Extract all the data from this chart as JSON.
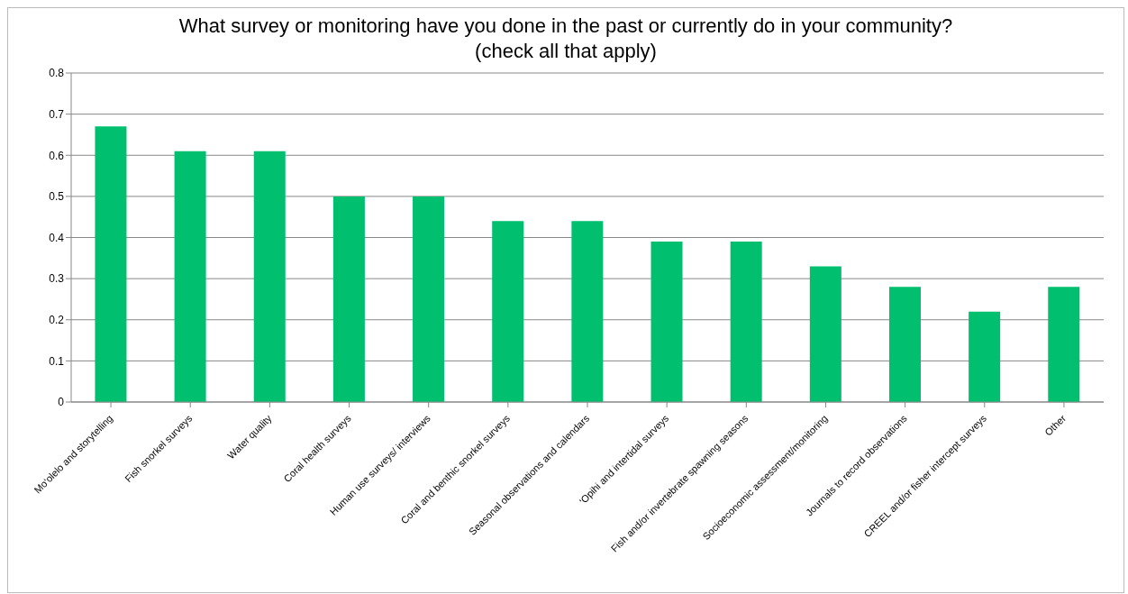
{
  "chart_data": {
    "type": "bar",
    "title": "What survey or monitoring have you done in the past or currently do in your community? (check all that apply)",
    "categories": [
      "Mo‘olelo and storytelling",
      "Fish snorkel surveys",
      "Water quality",
      "Coral health surveys",
      "Human use surveys/ interviews",
      "Coral and benthic snorkel surveys",
      "Seasonal observations and calendars",
      "‘Opihi and intertidal surveys",
      "Fish and/or invertebrate spawning seasons",
      "Socioeconomic assessment/monitoring",
      "Journals to record observations",
      "CREEL and/or fisher intercept surveys",
      "Other"
    ],
    "values": [
      0.67,
      0.61,
      0.61,
      0.5,
      0.5,
      0.44,
      0.44,
      0.39,
      0.39,
      0.33,
      0.28,
      0.22,
      0.28
    ],
    "color": "#00bf6f",
    "ylim": [
      0,
      0.8
    ],
    "yticks": [
      0,
      0.1,
      0.2,
      0.3,
      0.4,
      0.5,
      0.6,
      0.7,
      0.8
    ],
    "grid": "y",
    "legend": false
  }
}
